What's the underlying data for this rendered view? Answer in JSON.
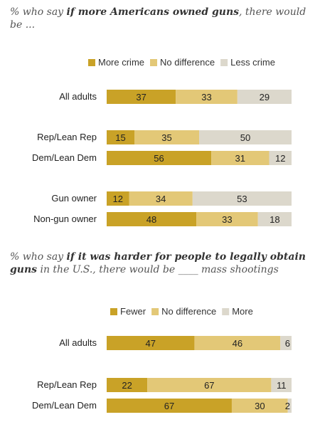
{
  "chart_data": [
    {
      "type": "bar",
      "stacked": true,
      "orientation": "horizontal",
      "title_pre": "% who say ",
      "title_bold": "if more Americans owned guns",
      "title_post": ", there would be ...",
      "legend": [
        "More crime",
        "No difference",
        "Less crime"
      ],
      "colors": [
        "#c9a227",
        "#e3c877",
        "#dcd8cc"
      ],
      "categories": [
        "All adults",
        "Rep/Lean Rep",
        "Dem/Lean Dem",
        "Gun owner",
        "Non-gun owner"
      ],
      "series": [
        {
          "name": "More crime",
          "values": [
            37,
            15,
            56,
            12,
            48
          ]
        },
        {
          "name": "No difference",
          "values": [
            33,
            35,
            31,
            34,
            33
          ]
        },
        {
          "name": "Less crime",
          "values": [
            29,
            50,
            12,
            53,
            18
          ]
        }
      ]
    },
    {
      "type": "bar",
      "stacked": true,
      "orientation": "horizontal",
      "title_pre": "% who say ",
      "title_bold": "if it was harder for people to legally obtain guns",
      "title_post": " in the U.S., there would be ____ mass shootings",
      "legend": [
        "Fewer",
        "No difference",
        "More"
      ],
      "colors": [
        "#c9a227",
        "#e3c877",
        "#dcd8cc"
      ],
      "categories": [
        "All adults",
        "Rep/Lean Rep",
        "Dem/Lean Dem"
      ],
      "series": [
        {
          "name": "Fewer",
          "values": [
            47,
            22,
            67
          ]
        },
        {
          "name": "No difference",
          "values": [
            46,
            67,
            30
          ]
        },
        {
          "name": "More",
          "values": [
            6,
            11,
            2
          ]
        }
      ]
    }
  ]
}
